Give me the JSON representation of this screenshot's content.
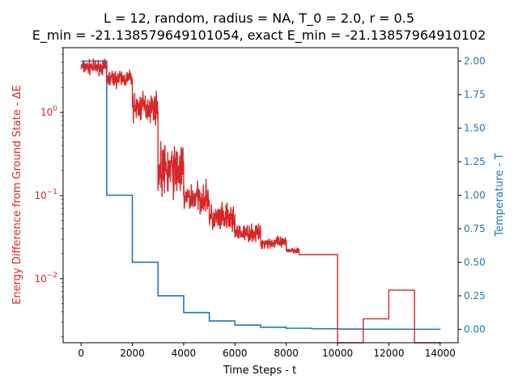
{
  "chart_data": {
    "type": "line",
    "title": {
      "line1": "L = 12, random, radius = NA, T_0 = 2.0, r = 0.5",
      "line2": "E_min = -21.138579649101054, exact E_min = -21.13857964910102"
    },
    "xlabel": "Time Steps - t",
    "ylabel_left": "Energy Difference from Ground State - ΔE",
    "ylabel_right": "Temperature - T",
    "xlim": [
      -700,
      14700
    ],
    "ylim_left": [
      0.0017,
      6.0
    ],
    "ylim_right": [
      -0.1,
      2.1
    ],
    "left_scale": "log",
    "grid": false,
    "x_ticks": [
      {
        "value": 0,
        "label": "0"
      },
      {
        "value": 2000,
        "label": "2000"
      },
      {
        "value": 4000,
        "label": "4000"
      },
      {
        "value": 6000,
        "label": "6000"
      },
      {
        "value": 8000,
        "label": "8000"
      },
      {
        "value": 10000,
        "label": "10000"
      },
      {
        "value": 12000,
        "label": "12000"
      },
      {
        "value": 14000,
        "label": "14000"
      }
    ],
    "left_ticks": [
      {
        "value": 1,
        "base": "10",
        "exp": "0"
      },
      {
        "value": 0.1,
        "base": "10",
        "exp": "−1"
      },
      {
        "value": 0.01,
        "base": "10",
        "exp": "−2"
      }
    ],
    "right_ticks": [
      {
        "value": 0.0,
        "label": "0.00"
      },
      {
        "value": 0.25,
        "label": "0.25"
      },
      {
        "value": 0.5,
        "label": "0.50"
      },
      {
        "value": 0.75,
        "label": "0.75"
      },
      {
        "value": 1.0,
        "label": "1.00"
      },
      {
        "value": 1.25,
        "label": "1.25"
      },
      {
        "value": 1.5,
        "label": "1.50"
      },
      {
        "value": 1.75,
        "label": "1.75"
      },
      {
        "value": 2.0,
        "label": "2.00"
      }
    ],
    "series": [
      {
        "axis": "left",
        "color": "#d62728",
        "noisy_segments": [
          {
            "x0": 0,
            "x1": 1000,
            "center": 3.5,
            "spread": 0.12
          },
          {
            "x0": 1000,
            "x1": 2000,
            "center": 2.55,
            "spread": 0.15
          },
          {
            "x0": 2000,
            "x1": 3000,
            "center": 1.15,
            "spread": 0.25
          },
          {
            "x0": 3000,
            "x1": 4000,
            "center": 0.2,
            "spread": 0.45
          },
          {
            "x0": 4000,
            "x1": 5000,
            "center": 0.095,
            "spread": 0.25
          },
          {
            "x0": 5000,
            "x1": 6000,
            "center": 0.052,
            "spread": 0.25
          },
          {
            "x0": 6000,
            "x1": 7000,
            "center": 0.035,
            "spread": 0.15
          },
          {
            "x0": 7000,
            "x1": 8000,
            "center": 0.027,
            "spread": 0.1
          },
          {
            "x0": 8000,
            "x1": 8500,
            "center": 0.022,
            "spread": 0.05
          }
        ],
        "steps": [
          {
            "x0": 8500,
            "x1": 10000,
            "y": 0.0195
          },
          {
            "x0": 10000,
            "x1": 11000,
            "y": 0.0011
          },
          {
            "x0": 11000,
            "x1": 12000,
            "y": 0.0033
          },
          {
            "x0": 12000,
            "x1": 13000,
            "y": 0.0073
          },
          {
            "x0": 13000,
            "x1": 14000,
            "y": 0.0011
          }
        ]
      },
      {
        "axis": "right",
        "color": "#1f77b4",
        "x": [
          0,
          1000,
          2000,
          3000,
          4000,
          5000,
          6000,
          7000,
          8000,
          9000,
          10000,
          11000,
          12000,
          13000,
          14000
        ],
        "values": [
          2.0,
          1.0,
          0.5,
          0.25,
          0.125,
          0.0625,
          0.03125,
          0.015625,
          0.0078,
          0.0039,
          0.002,
          0.001,
          0.0005,
          0.00025,
          0.00012
        ]
      }
    ]
  }
}
